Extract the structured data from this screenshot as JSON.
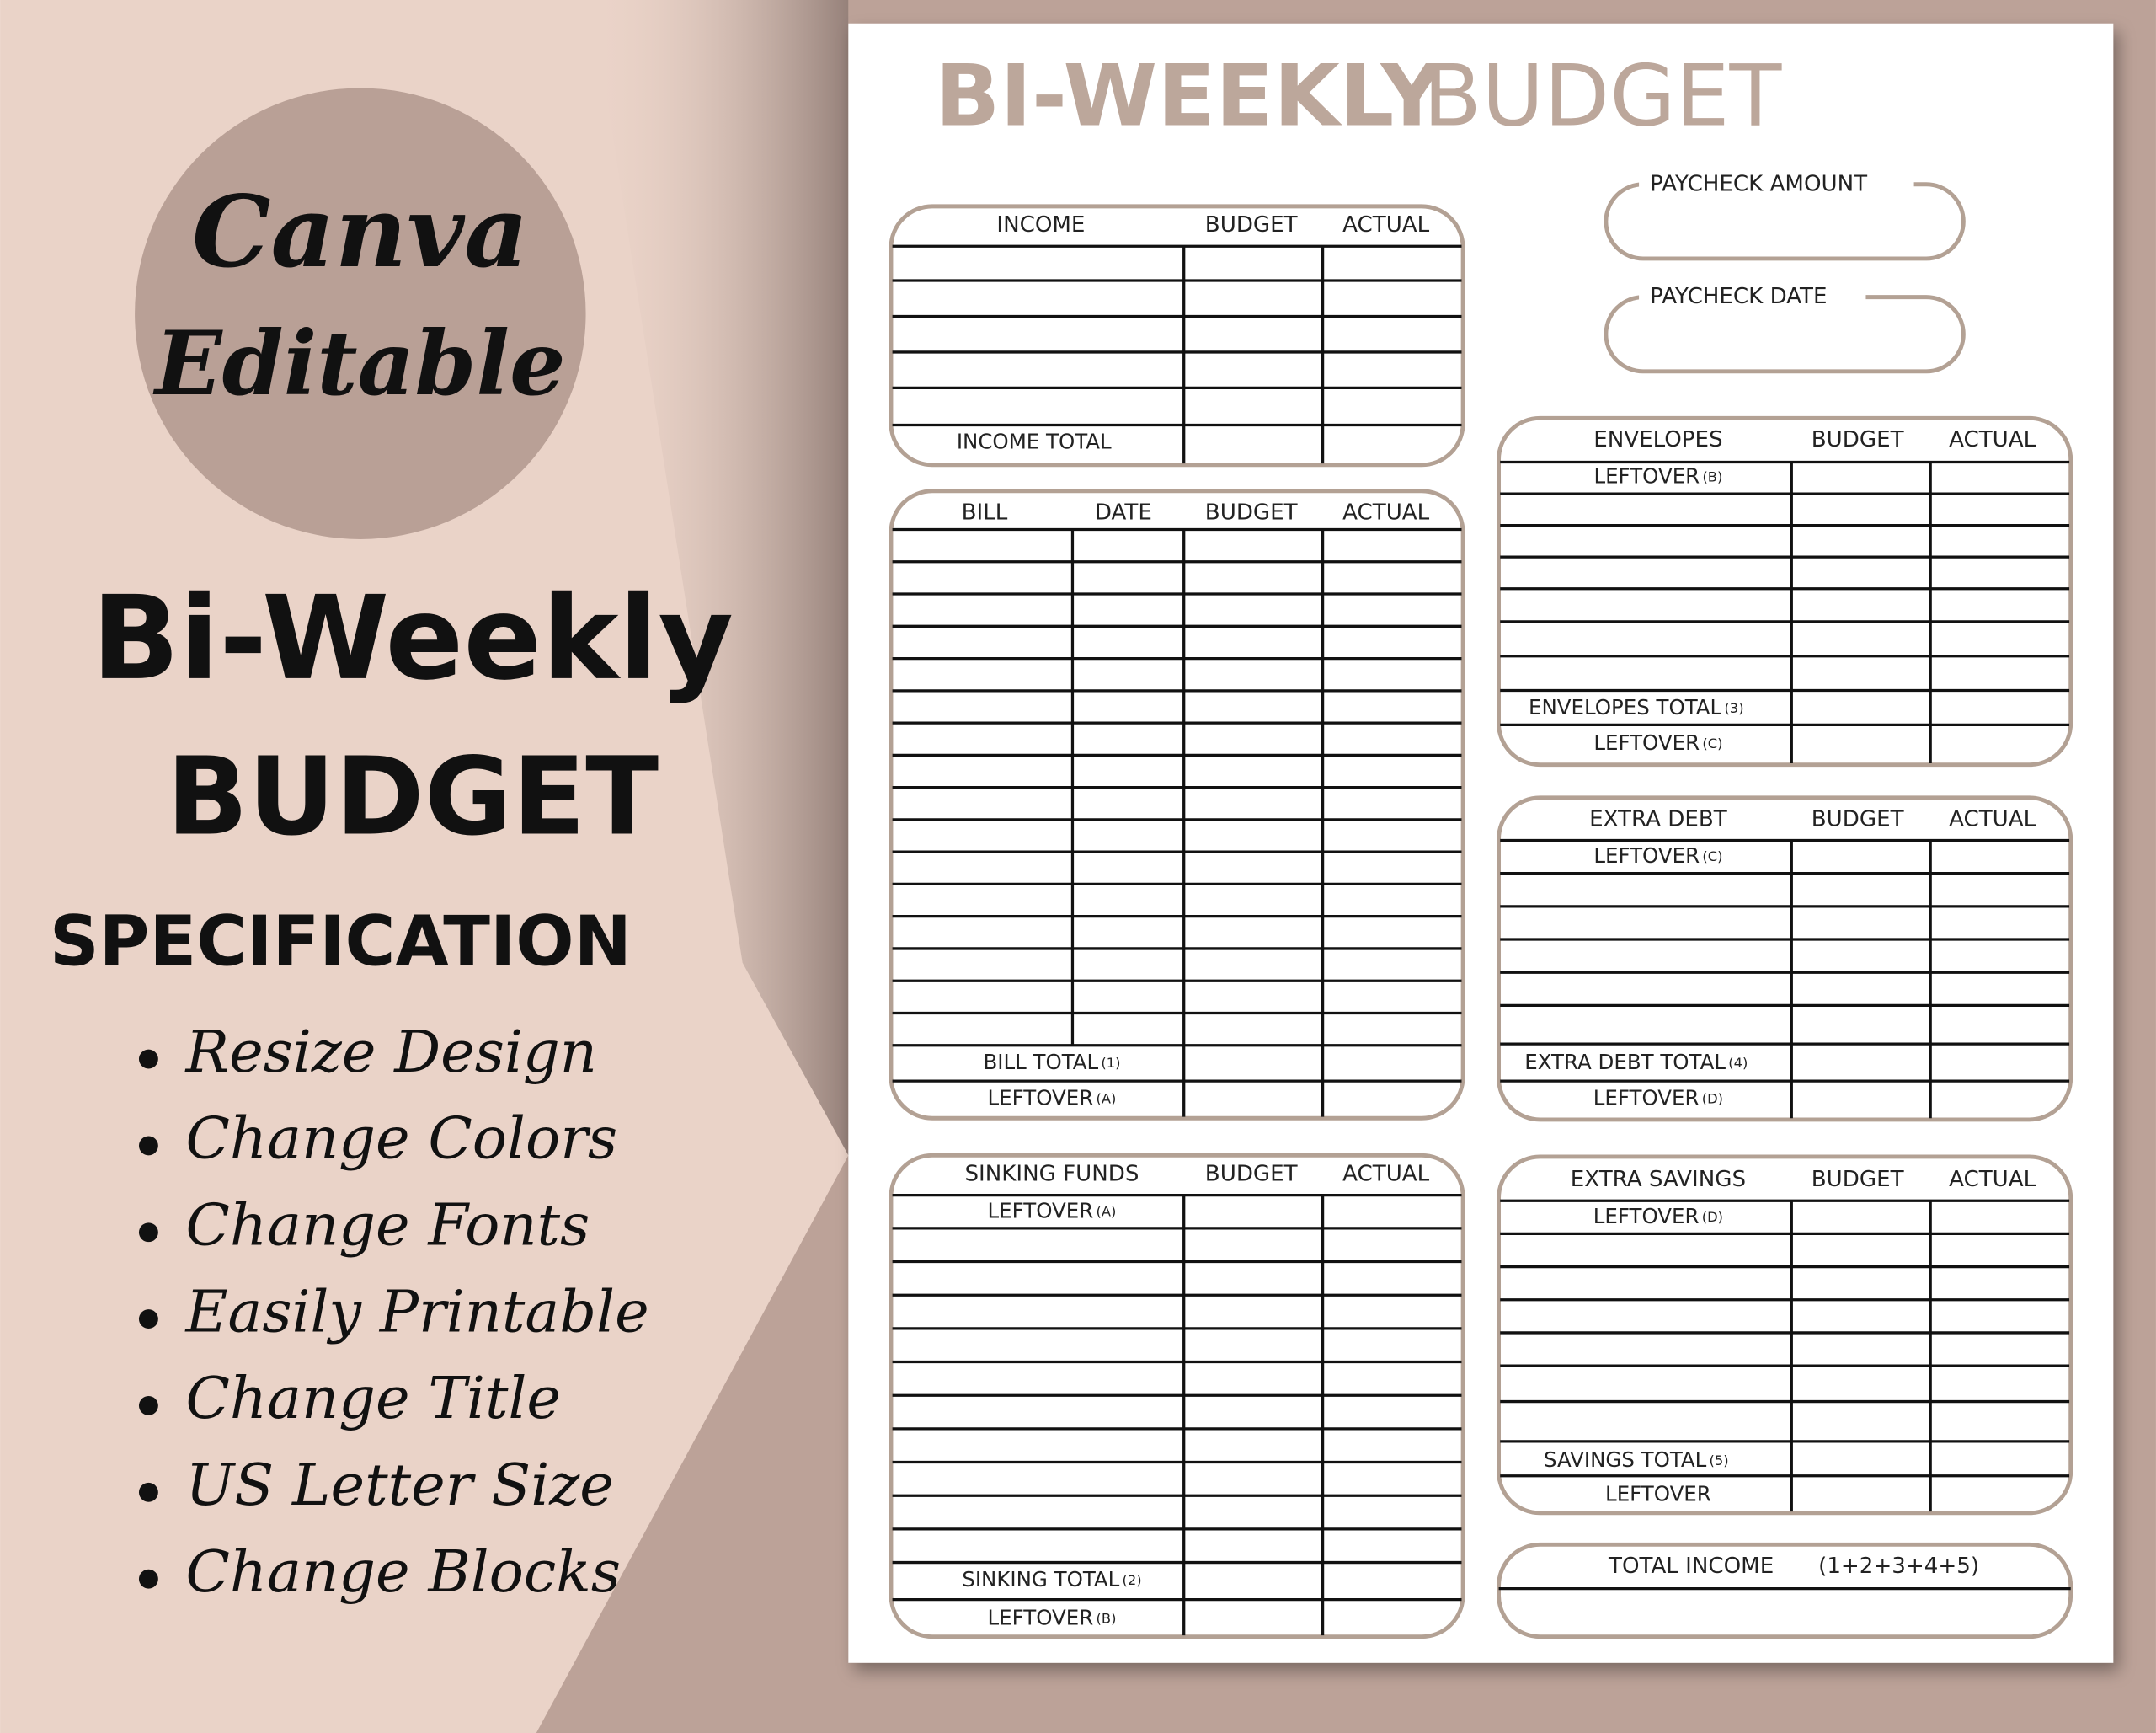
{
  "promo": {
    "badge": [
      "Canva",
      "Editable"
    ],
    "title": [
      "Bi-Weekly",
      "BUDGET"
    ],
    "spec_heading": "SPECIFICATION",
    "features": [
      "Resize Design",
      "Change Colors",
      "Change Fonts",
      "Easily Printable",
      "Change Title",
      "US Letter Size",
      "Change Blocks"
    ]
  },
  "sheet": {
    "title_bold": "BI-WEEKLY",
    "title_light": "BUDGET",
    "paycheck_amount": "PAYCHECK AMOUNT",
    "paycheck_date": "PAYCHECK DATE",
    "tables": {
      "income": {
        "headers": [
          "INCOME",
          "BUDGET",
          "ACTUAL"
        ],
        "rows": [
          {
            "text": "INCOME TOTAL"
          }
        ]
      },
      "bills": {
        "headers": [
          "BILL",
          "DATE",
          "BUDGET",
          "ACTUAL"
        ],
        "rows": [
          {
            "text": "BILL TOTAL",
            "note": "(1)"
          },
          {
            "text": "LEFTOVER",
            "note": "(A)"
          }
        ]
      },
      "sinking": {
        "headers": [
          "SINKING FUNDS",
          "BUDGET",
          "ACTUAL"
        ],
        "rows": [
          {
            "text": "LEFTOVER",
            "note": "(A)"
          },
          {
            "text": "SINKING TOTAL",
            "note": "(2)"
          },
          {
            "text": "LEFTOVER",
            "note": "(B)"
          }
        ]
      },
      "envelopes": {
        "headers": [
          "ENVELOPES",
          "BUDGET",
          "ACTUAL"
        ],
        "rows": [
          {
            "text": "LEFTOVER",
            "note": "(B)"
          },
          {
            "text": "ENVELOPES TOTAL",
            "note": "(3)"
          },
          {
            "text": "LEFTOVER",
            "note": "(C)"
          }
        ]
      },
      "extra_debt": {
        "headers": [
          "EXTRA DEBT",
          "BUDGET",
          "ACTUAL"
        ],
        "rows": [
          {
            "text": "LEFTOVER",
            "note": "(C)"
          },
          {
            "text": "EXTRA DEBT TOTAL",
            "note": "(4)"
          },
          {
            "text": "LEFTOVER",
            "note": "(D)"
          }
        ]
      },
      "extra_savings": {
        "headers": [
          "EXTRA SAVINGS",
          "BUDGET",
          "ACTUAL"
        ],
        "rows": [
          {
            "text": "LEFTOVER",
            "note": "(D)"
          },
          {
            "text": "SAVINGS TOTAL",
            "note": "(5)"
          },
          {
            "text": "LEFTOVER"
          }
        ]
      }
    },
    "total_income": {
      "label": "TOTAL INCOME",
      "formula": "(1+2+3+4+5)"
    }
  }
}
